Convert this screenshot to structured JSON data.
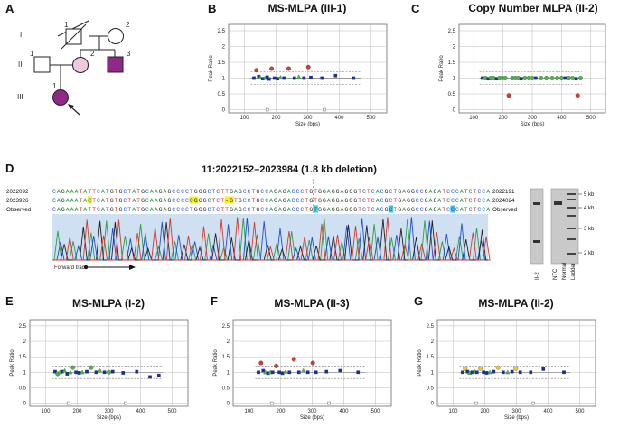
{
  "panel_letters": {
    "A": "A",
    "B": "B",
    "C": "C",
    "D": "D",
    "E": "E",
    "F": "F",
    "G": "G"
  },
  "pedigree": {
    "generations": [
      "I",
      "II",
      "III"
    ],
    "individual_numbers": {
      "I1": "1",
      "I2": "2",
      "II1": "1",
      "II2": "2",
      "II3": "3",
      "III1": "1"
    },
    "colors": {
      "affected": "#8e2a86",
      "carrier": "#f0c8e4",
      "unaffected": "#ffffff"
    }
  },
  "colors": {
    "grid": "#b8b8b8",
    "border": "#555555",
    "mark_red": "#d43a2f",
    "mark_green": "#4cb848",
    "mark_blue": "#1c2f8c",
    "mark_yellow": "#f2c81a",
    "gray_sq": "#aaaaaa",
    "trace_bg": "#cfe0f3",
    "highlight_yellow": "#f4f020",
    "highlight_cyan": "#37c8dc",
    "deletion_line": "#d43a2f"
  },
  "chart_data": [
    {
      "id": "B",
      "type": "scatter",
      "title": "MS-MLPA (III-1)",
      "xlabel": "Size (bps)",
      "ylabel": "Peak Ratio",
      "xlim": [
        50,
        550
      ],
      "ylim": [
        -0.1,
        2.7
      ],
      "x_ticks": [
        "100",
        "200",
        "300",
        "400",
        "500"
      ],
      "y_ticks": [
        "0",
        "0.5",
        "1",
        "1.5",
        "2",
        "2.5"
      ],
      "threshold_lines": [
        0.8,
        1.2
      ],
      "points": [
        {
          "x": 130,
          "y": 1.0,
          "m": "sq",
          "c": "blue"
        },
        {
          "x": 138,
          "y": 1.25,
          "m": "circle",
          "c": "red"
        },
        {
          "x": 145,
          "y": 1.05,
          "m": "sq",
          "c": "blue"
        },
        {
          "x": 150,
          "y": 1.02,
          "m": "tri",
          "c": "green"
        },
        {
          "x": 158,
          "y": 0.98,
          "m": "sq",
          "c": "blue"
        },
        {
          "x": 165,
          "y": 1.0,
          "m": "tri",
          "c": "green"
        },
        {
          "x": 172,
          "y": 1.03,
          "m": "sq",
          "c": "blue"
        },
        {
          "x": 178,
          "y": 0.97,
          "m": "sq",
          "c": "blue"
        },
        {
          "x": 186,
          "y": 1.3,
          "m": "circle",
          "c": "red"
        },
        {
          "x": 195,
          "y": 1.0,
          "m": "sq",
          "c": "blue"
        },
        {
          "x": 205,
          "y": 0.98,
          "m": "sq",
          "c": "blue"
        },
        {
          "x": 214,
          "y": 1.02,
          "m": "tri",
          "c": "green"
        },
        {
          "x": 225,
          "y": 1.0,
          "m": "sq",
          "c": "blue"
        },
        {
          "x": 240,
          "y": 1.3,
          "m": "circle",
          "c": "red"
        },
        {
          "x": 258,
          "y": 1.0,
          "m": "sq",
          "c": "blue"
        },
        {
          "x": 272,
          "y": 1.04,
          "m": "tri",
          "c": "green"
        },
        {
          "x": 288,
          "y": 1.0,
          "m": "sq",
          "c": "blue"
        },
        {
          "x": 302,
          "y": 1.35,
          "m": "circle",
          "c": "red"
        },
        {
          "x": 310,
          "y": 1.02,
          "m": "sq",
          "c": "blue"
        },
        {
          "x": 345,
          "y": 1.0,
          "m": "sq",
          "c": "blue"
        },
        {
          "x": 388,
          "y": 1.08,
          "m": "sq",
          "c": "blue"
        },
        {
          "x": 445,
          "y": 1.0,
          "m": "sq",
          "c": "blue"
        },
        {
          "x": 172,
          "y": 0.0,
          "m": "sq",
          "c": "gray"
        },
        {
          "x": 353,
          "y": 0.0,
          "m": "sq",
          "c": "gray"
        }
      ]
    },
    {
      "id": "C",
      "type": "scatter",
      "title": "Copy Number MLPA (II-2)",
      "xlabel": "Size (bps)",
      "ylabel": "Peak Ratio",
      "xlim": [
        50,
        550
      ],
      "ylim": [
        -0.1,
        2.7
      ],
      "x_ticks": [
        "100",
        "200",
        "300",
        "400",
        "500"
      ],
      "y_ticks": [
        "0",
        "0.5",
        "1",
        "1.5",
        "2",
        "2.5"
      ],
      "threshold_lines": [
        0.8,
        1.2
      ],
      "points": [
        {
          "x": 130,
          "y": 1.0,
          "m": "sq",
          "c": "blue"
        },
        {
          "x": 140,
          "y": 1.0,
          "m": "circle",
          "c": "green"
        },
        {
          "x": 150,
          "y": 0.98,
          "m": "sq",
          "c": "blue"
        },
        {
          "x": 158,
          "y": 1.0,
          "m": "circle",
          "c": "green"
        },
        {
          "x": 168,
          "y": 1.0,
          "m": "circle",
          "c": "green"
        },
        {
          "x": 178,
          "y": 0.98,
          "m": "sq",
          "c": "blue"
        },
        {
          "x": 188,
          "y": 1.0,
          "m": "circle",
          "c": "green"
        },
        {
          "x": 198,
          "y": 1.0,
          "m": "circle",
          "c": "green"
        },
        {
          "x": 208,
          "y": 1.0,
          "m": "circle",
          "c": "green"
        },
        {
          "x": 220,
          "y": 0.45,
          "m": "circle",
          "c": "red"
        },
        {
          "x": 232,
          "y": 1.0,
          "m": "circle",
          "c": "green"
        },
        {
          "x": 242,
          "y": 1.0,
          "m": "circle",
          "c": "green"
        },
        {
          "x": 252,
          "y": 1.0,
          "m": "circle",
          "c": "green"
        },
        {
          "x": 262,
          "y": 0.98,
          "m": "sq",
          "c": "blue"
        },
        {
          "x": 275,
          "y": 1.0,
          "m": "circle",
          "c": "green"
        },
        {
          "x": 288,
          "y": 1.0,
          "m": "circle",
          "c": "green"
        },
        {
          "x": 300,
          "y": 1.0,
          "m": "circle",
          "c": "green"
        },
        {
          "x": 312,
          "y": 1.0,
          "m": "sq",
          "c": "blue"
        },
        {
          "x": 330,
          "y": 1.0,
          "m": "circle",
          "c": "green"
        },
        {
          "x": 348,
          "y": 1.0,
          "m": "circle",
          "c": "green"
        },
        {
          "x": 368,
          "y": 1.0,
          "m": "circle",
          "c": "green"
        },
        {
          "x": 385,
          "y": 1.0,
          "m": "circle",
          "c": "green"
        },
        {
          "x": 400,
          "y": 1.0,
          "m": "circle",
          "c": "green"
        },
        {
          "x": 412,
          "y": 1.0,
          "m": "sq",
          "c": "blue"
        },
        {
          "x": 425,
          "y": 1.0,
          "m": "circle",
          "c": "green"
        },
        {
          "x": 438,
          "y": 1.0,
          "m": "circle",
          "c": "green"
        },
        {
          "x": 450,
          "y": 0.98,
          "m": "sq",
          "c": "blue"
        },
        {
          "x": 455,
          "y": 0.45,
          "m": "circle",
          "c": "red"
        },
        {
          "x": 465,
          "y": 1.0,
          "m": "circle",
          "c": "green"
        }
      ]
    },
    {
      "id": "E",
      "type": "scatter",
      "title": "MS-MLPA (I-2)",
      "xlabel": "Size (bps)",
      "ylabel": "Peak Ratio",
      "xlim": [
        50,
        550
      ],
      "ylim": [
        -0.1,
        2.7
      ],
      "x_ticks": [
        "100",
        "200",
        "300",
        "400",
        "500"
      ],
      "y_ticks": [
        "0",
        "0.5",
        "1",
        "1.5",
        "2",
        "2.5"
      ],
      "threshold_lines": [
        0.8,
        1.2
      ],
      "points": [
        {
          "x": 130,
          "y": 1.02,
          "m": "sq",
          "c": "blue"
        },
        {
          "x": 138,
          "y": 0.95,
          "m": "circle",
          "c": "green"
        },
        {
          "x": 145,
          "y": 1.0,
          "m": "tri",
          "c": "green"
        },
        {
          "x": 152,
          "y": 1.02,
          "m": "sq",
          "c": "blue"
        },
        {
          "x": 160,
          "y": 1.05,
          "m": "tri",
          "c": "green"
        },
        {
          "x": 168,
          "y": 0.95,
          "m": "sq",
          "c": "blue"
        },
        {
          "x": 178,
          "y": 1.0,
          "m": "tri",
          "c": "green"
        },
        {
          "x": 186,
          "y": 1.15,
          "m": "circle",
          "c": "green"
        },
        {
          "x": 196,
          "y": 1.0,
          "m": "sq",
          "c": "blue"
        },
        {
          "x": 206,
          "y": 0.98,
          "m": "sq",
          "c": "blue"
        },
        {
          "x": 216,
          "y": 1.0,
          "m": "tri",
          "c": "green"
        },
        {
          "x": 230,
          "y": 1.02,
          "m": "sq",
          "c": "blue"
        },
        {
          "x": 244,
          "y": 1.15,
          "m": "circle",
          "c": "green"
        },
        {
          "x": 260,
          "y": 1.0,
          "m": "sq",
          "c": "blue"
        },
        {
          "x": 272,
          "y": 1.05,
          "m": "tri",
          "c": "green"
        },
        {
          "x": 286,
          "y": 1.0,
          "m": "sq",
          "c": "blue"
        },
        {
          "x": 300,
          "y": 1.0,
          "m": "circle",
          "c": "green"
        },
        {
          "x": 312,
          "y": 1.02,
          "m": "sq",
          "c": "blue"
        },
        {
          "x": 345,
          "y": 0.98,
          "m": "sq",
          "c": "blue"
        },
        {
          "x": 388,
          "y": 1.02,
          "m": "sq",
          "c": "blue"
        },
        {
          "x": 430,
          "y": 0.85,
          "m": "sq",
          "c": "blue"
        },
        {
          "x": 458,
          "y": 0.9,
          "m": "sq",
          "c": "blue"
        },
        {
          "x": 172,
          "y": 0.0,
          "m": "sq",
          "c": "gray"
        },
        {
          "x": 353,
          "y": 0.0,
          "m": "sq",
          "c": "gray"
        }
      ]
    },
    {
      "id": "F",
      "type": "scatter",
      "title": "MS-MLPA (II-3)",
      "xlabel": "Size (bps)",
      "ylabel": "Peak Ratio",
      "xlim": [
        50,
        550
      ],
      "ylim": [
        -0.1,
        2.7
      ],
      "x_ticks": [
        "100",
        "200",
        "300",
        "400",
        "500"
      ],
      "y_ticks": [
        "0",
        "0.5",
        "1",
        "1.5",
        "2",
        "2.5"
      ],
      "threshold_lines": [
        0.8,
        1.2
      ],
      "points": [
        {
          "x": 130,
          "y": 1.0,
          "m": "sq",
          "c": "blue"
        },
        {
          "x": 138,
          "y": 1.3,
          "m": "circle",
          "c": "red"
        },
        {
          "x": 145,
          "y": 1.05,
          "m": "sq",
          "c": "blue"
        },
        {
          "x": 152,
          "y": 1.0,
          "m": "tri",
          "c": "green"
        },
        {
          "x": 160,
          "y": 0.97,
          "m": "sq",
          "c": "blue"
        },
        {
          "x": 168,
          "y": 1.0,
          "m": "tri",
          "c": "green"
        },
        {
          "x": 175,
          "y": 1.0,
          "m": "sq",
          "c": "blue"
        },
        {
          "x": 186,
          "y": 1.2,
          "m": "circle",
          "c": "red"
        },
        {
          "x": 196,
          "y": 1.0,
          "m": "sq",
          "c": "blue"
        },
        {
          "x": 206,
          "y": 0.97,
          "m": "sq",
          "c": "blue"
        },
        {
          "x": 216,
          "y": 1.02,
          "m": "tri",
          "c": "green"
        },
        {
          "x": 228,
          "y": 1.0,
          "m": "sq",
          "c": "blue"
        },
        {
          "x": 242,
          "y": 1.42,
          "m": "circle",
          "c": "red"
        },
        {
          "x": 258,
          "y": 1.0,
          "m": "sq",
          "c": "blue"
        },
        {
          "x": 272,
          "y": 1.05,
          "m": "tri",
          "c": "green"
        },
        {
          "x": 286,
          "y": 1.0,
          "m": "sq",
          "c": "blue"
        },
        {
          "x": 302,
          "y": 1.3,
          "m": "circle",
          "c": "red"
        },
        {
          "x": 312,
          "y": 1.0,
          "m": "sq",
          "c": "blue"
        },
        {
          "x": 345,
          "y": 1.02,
          "m": "sq",
          "c": "blue"
        },
        {
          "x": 388,
          "y": 1.05,
          "m": "sq",
          "c": "blue"
        },
        {
          "x": 445,
          "y": 1.0,
          "m": "sq",
          "c": "blue"
        },
        {
          "x": 172,
          "y": 0.0,
          "m": "sq",
          "c": "gray"
        },
        {
          "x": 353,
          "y": 0.0,
          "m": "sq",
          "c": "gray"
        }
      ]
    },
    {
      "id": "G",
      "type": "scatter",
      "title": "MS-MLPA (II-2)",
      "xlabel": "Size (bps)",
      "ylabel": "Peak Ratio",
      "xlim": [
        50,
        550
      ],
      "ylim": [
        -0.1,
        2.7
      ],
      "x_ticks": [
        "100",
        "200",
        "300",
        "400",
        "500"
      ],
      "y_ticks": [
        "0",
        "0.5",
        "1",
        "1.5",
        "2",
        "2.5"
      ],
      "threshold_lines": [
        0.8,
        1.2
      ],
      "points": [
        {
          "x": 130,
          "y": 1.0,
          "m": "sq",
          "c": "blue"
        },
        {
          "x": 138,
          "y": 1.12,
          "m": "circle",
          "c": "yellow"
        },
        {
          "x": 145,
          "y": 1.02,
          "m": "sq",
          "c": "blue"
        },
        {
          "x": 152,
          "y": 0.98,
          "m": "tri",
          "c": "green"
        },
        {
          "x": 160,
          "y": 1.0,
          "m": "sq",
          "c": "blue"
        },
        {
          "x": 168,
          "y": 1.02,
          "m": "tri",
          "c": "green"
        },
        {
          "x": 175,
          "y": 1.0,
          "m": "sq",
          "c": "blue"
        },
        {
          "x": 186,
          "y": 1.12,
          "m": "circle",
          "c": "yellow"
        },
        {
          "x": 196,
          "y": 1.0,
          "m": "sq",
          "c": "blue"
        },
        {
          "x": 206,
          "y": 0.98,
          "m": "sq",
          "c": "blue"
        },
        {
          "x": 216,
          "y": 1.0,
          "m": "tri",
          "c": "green"
        },
        {
          "x": 228,
          "y": 1.02,
          "m": "sq",
          "c": "blue"
        },
        {
          "x": 242,
          "y": 1.15,
          "m": "circle",
          "c": "yellow"
        },
        {
          "x": 258,
          "y": 1.0,
          "m": "sq",
          "c": "blue"
        },
        {
          "x": 272,
          "y": 1.0,
          "m": "tri",
          "c": "green"
        },
        {
          "x": 286,
          "y": 1.02,
          "m": "sq",
          "c": "blue"
        },
        {
          "x": 298,
          "y": 1.12,
          "m": "circle",
          "c": "yellow"
        },
        {
          "x": 312,
          "y": 1.0,
          "m": "sq",
          "c": "blue"
        },
        {
          "x": 345,
          "y": 1.0,
          "m": "sq",
          "c": "blue"
        },
        {
          "x": 385,
          "y": 1.1,
          "m": "sq",
          "c": "blue"
        },
        {
          "x": 450,
          "y": 1.0,
          "m": "sq",
          "c": "blue"
        },
        {
          "x": 172,
          "y": 0.0,
          "m": "sq",
          "c": "gray"
        },
        {
          "x": 353,
          "y": 0.0,
          "m": "sq",
          "c": "gray"
        }
      ]
    }
  ],
  "sequence": {
    "title": "11:2022152–2023984 (1.8 kb deletion)",
    "rows": [
      {
        "left": "2022092",
        "right": "2022191",
        "seq": "CAGAAATATTCATGTGCTATGCAAGAGCCCCTGGGCTCTTGAGCCTGCCAGAGACCCTGTGGAGGAGGGTCTCACGCTGAGGCCGAGATCCCATCTCCA"
      },
      {
        "left": "2023926",
        "right": "2024024",
        "seq": "CAGAAATACTCATGTGCTATGCAAGAGCCCCCGGGCTCT-GTGCCTGCCAGAGACCCTGTGGAGGAGGGTCTCACGCTGAGGCCGAGATCCCATCTCCA"
      },
      {
        "left": "Observed",
        "right": "Observed",
        "seq": "CAGAAATATTCATGTGCTATGCAAGAGCCCCTGGGCTCTTGAGCCTGCCAGAGACCCTGTGGAGGAGGGTCTCACGCTGAGGCCGAGATCCCATCTCCA"
      }
    ],
    "forward_trace": "Forward trace"
  },
  "gel": {
    "lanes": [
      "II-2",
      "NTC",
      "Normal",
      "Ladder"
    ],
    "markers": [
      "5 kb",
      "4 kb",
      "3 kb",
      "2 kb"
    ]
  }
}
